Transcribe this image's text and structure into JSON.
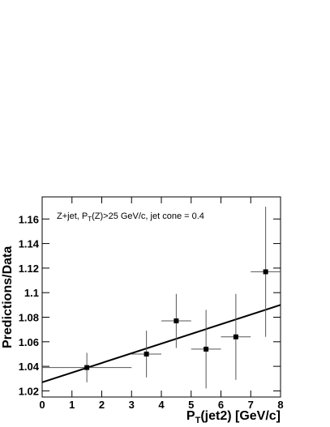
{
  "chart_data": {
    "type": "scatter",
    "annotation": [
      "Z+jet, P",
      "T",
      "(Z)>25 GeV/c, jet cone = 0.4"
    ],
    "xlabel": [
      "P",
      "T",
      "(jet2) [GeV/c]"
    ],
    "ylabel": "Predictions/Data",
    "x": [
      1.5,
      3.5,
      4.5,
      5.5,
      6.5,
      7.5
    ],
    "xerr": [
      1.5,
      0.5,
      0.5,
      0.5,
      0.5,
      0.5
    ],
    "values": [
      1.039,
      1.05,
      1.077,
      1.054,
      1.064,
      1.117
    ],
    "yerr": [
      0.012,
      0.019,
      0.022,
      0.032,
      0.035,
      0.053
    ],
    "color": "#000000",
    "fit": {
      "x": [
        0,
        8
      ],
      "values": [
        1.027,
        1.09
      ]
    },
    "xlim": [
      0,
      8
    ],
    "xticks": [
      0,
      1,
      2,
      3,
      4,
      5,
      6,
      7,
      8
    ],
    "ylim": [
      1.015,
      1.178
    ],
    "yticks": [
      1.02,
      1.04,
      1.06,
      1.08,
      1.1,
      1.12,
      1.14,
      1.16
    ]
  }
}
